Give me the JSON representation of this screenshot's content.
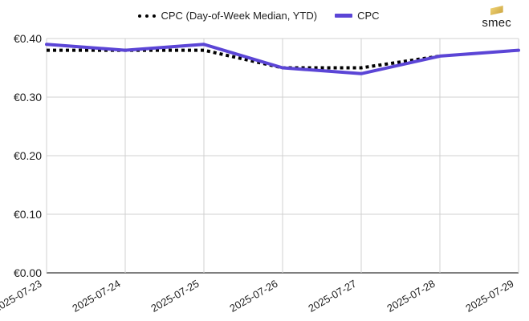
{
  "logo": {
    "text": "smec",
    "accent_color": "#d8b24c"
  },
  "chart_data": {
    "type": "line",
    "x": [
      "2025-07-23",
      "2025-07-24",
      "2025-07-25",
      "2025-07-26",
      "2025-07-27",
      "2025-07-28",
      "2025-07-29"
    ],
    "series": [
      {
        "name": "CPC (Day-of-Week Median, YTD)",
        "values": [
          0.38,
          0.38,
          0.38,
          0.35,
          0.35,
          0.37,
          null
        ],
        "color": "#000000",
        "style": "dotted"
      },
      {
        "name": "CPC",
        "values": [
          0.39,
          0.38,
          0.39,
          0.35,
          0.34,
          0.37,
          0.38
        ],
        "color": "#5b45d6",
        "style": "solid"
      }
    ],
    "y_ticks": [
      "€0.00",
      "€0.10",
      "€0.20",
      "€0.30",
      "€0.40"
    ],
    "y_tick_values": [
      0,
      0.1,
      0.2,
      0.3,
      0.4
    ],
    "ylim": [
      0,
      0.4
    ],
    "grid": true,
    "legend_position": "top-center"
  }
}
